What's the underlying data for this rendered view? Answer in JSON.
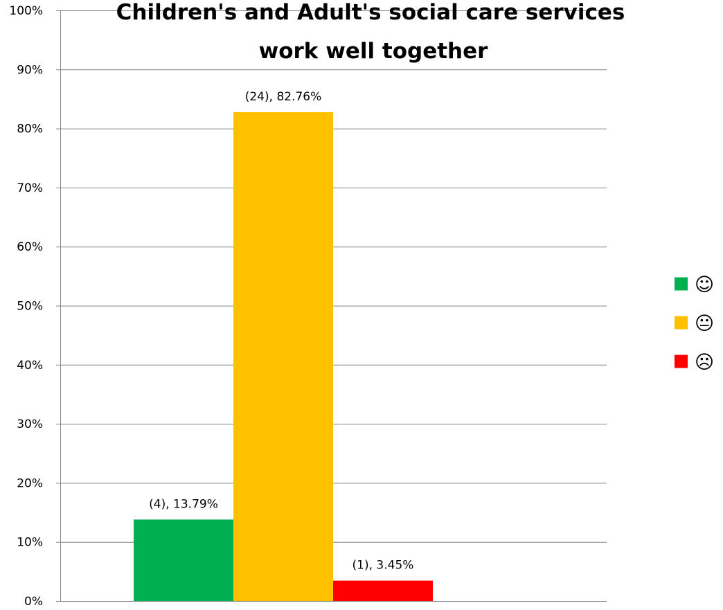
{
  "chart_data": {
    "type": "bar",
    "title_lines": [
      "Children's and Adult's social care services",
      "work well together"
    ],
    "categories": [
      "☺",
      "😐",
      "☹"
    ],
    "series": [
      {
        "values": [
          13.79,
          82.76,
          3.45
        ],
        "counts": [
          4,
          24,
          1
        ]
      }
    ],
    "data_labels": [
      "(4), 13.79%",
      "(24), 82.76%",
      "(1), 3.45%"
    ],
    "colors": [
      "#00B050",
      "#FFC000",
      "#FF0000"
    ],
    "ylim": [
      0,
      100
    ],
    "y_ticks": [
      0,
      10,
      20,
      30,
      40,
      50,
      60,
      70,
      80,
      90,
      100
    ],
    "y_tick_labels": [
      "0%",
      "10%",
      "20%",
      "30%",
      "40%",
      "50%",
      "60%",
      "70%",
      "80%",
      "90%",
      "100%"
    ],
    "xlabel": "",
    "ylabel": "",
    "grid": true,
    "legend": {
      "position": "right",
      "entries": [
        {
          "symbol": "☺",
          "icon": "smiley-happy-icon",
          "color": "#00B050"
        },
        {
          "symbol": "😐",
          "icon": "smiley-neutral-icon",
          "color": "#FFC000"
        },
        {
          "symbol": "☹",
          "icon": "smiley-sad-icon",
          "color": "#FF0000"
        }
      ]
    }
  }
}
